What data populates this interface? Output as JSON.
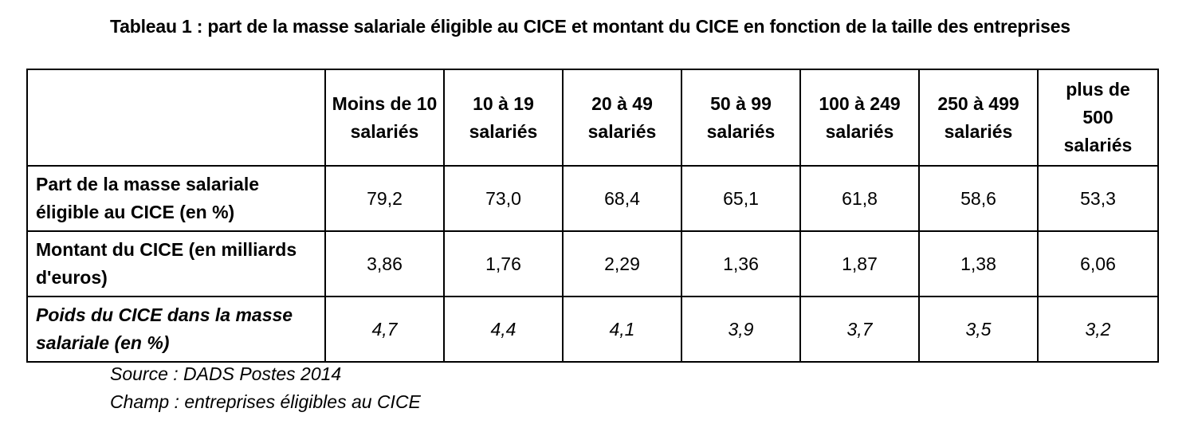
{
  "title": "Tableau 1 : part de la masse salariale éligible au CICE et montant du CICE en fonction de la taille des entreprises",
  "table": {
    "corner": "",
    "columns": [
      "Moins de 10 salariés",
      "10 à 19 salariés",
      "20 à 49 salariés",
      "50 à 99 salariés",
      "100 à 249 salariés",
      "250 à 499 salariés",
      "plus de 500 salariés"
    ],
    "rows": [
      {
        "label": "Part de la masse salariale éligible au CICE (en %)",
        "values": [
          "79,2",
          "73,0",
          "68,4",
          "65,1",
          "61,8",
          "58,6",
          "53,3"
        ]
      },
      {
        "label": "Montant du CICE (en milliards d'euros)",
        "values": [
          "3,86",
          "1,76",
          "2,29",
          "1,36",
          "1,87",
          "1,38",
          "6,06"
        ]
      },
      {
        "label": "Poids du CICE dans la masse salariale (en %)",
        "values": [
          "4,7",
          "4,4",
          "4,1",
          "3,9",
          "3,7",
          "3,5",
          "3,2"
        ]
      }
    ]
  },
  "footnotes": {
    "source": "Source : DADS Postes 2014",
    "champ": "Champ : entreprises éligibles au CICE"
  }
}
